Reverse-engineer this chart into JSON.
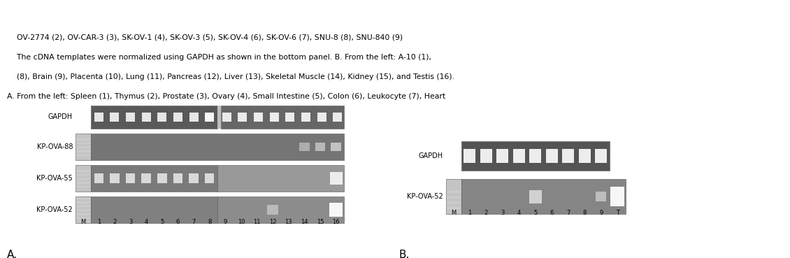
{
  "fig_width": 11.3,
  "fig_height": 3.69,
  "dpi": 100,
  "bg_color": "#ffffff",
  "panel_A_label": "A.",
  "panel_B_label": "B.",
  "label_fontsize": 11,
  "gene_label_fontsize": 7,
  "lane_label_fontsize": 6,
  "caption_fontsize": 7.8,
  "caption_lines": [
    "A. From the left: Spleen (1), Thymus (2), Prostate (3), Ovary (4), Small Intestine (5), Colon (6), Leukocyte (7), Heart",
    "    (8), Brain (9), Placenta (10), Lung (11), Pancreas (12), Liver (13), Skeletal Muscle (14), Kidney (15), and Testis (16).",
    "    The cDNA templates were normalized using GAPDH as shown in the bottom panel. B. From the left: A-10 (1),",
    "    OV-2774 (2), OV-CAR-3 (3), SK-OV-1 (4), SK-OV-3 (5), SK-OV-4 (6), SK-OV-6 (7), SNU-8 (8), SNU-840 (9)"
  ],
  "A_genes": [
    "KP-OVA-52",
    "KP-OVA-55",
    "KP-OVA-88",
    "GAPDH"
  ],
  "B_genes": [
    "KP-OVA-52",
    "GAPDH"
  ],
  "A_lane_labels": [
    "M",
    "1",
    "2",
    "3",
    "4",
    "5",
    "6",
    "7",
    "8",
    "9",
    "10",
    "11",
    "12",
    "13",
    "14",
    "15",
    "16"
  ],
  "B_lane_labels": [
    "M",
    "1",
    "2",
    "3",
    "4",
    "5",
    "6",
    "7",
    "8",
    "9",
    "T"
  ]
}
